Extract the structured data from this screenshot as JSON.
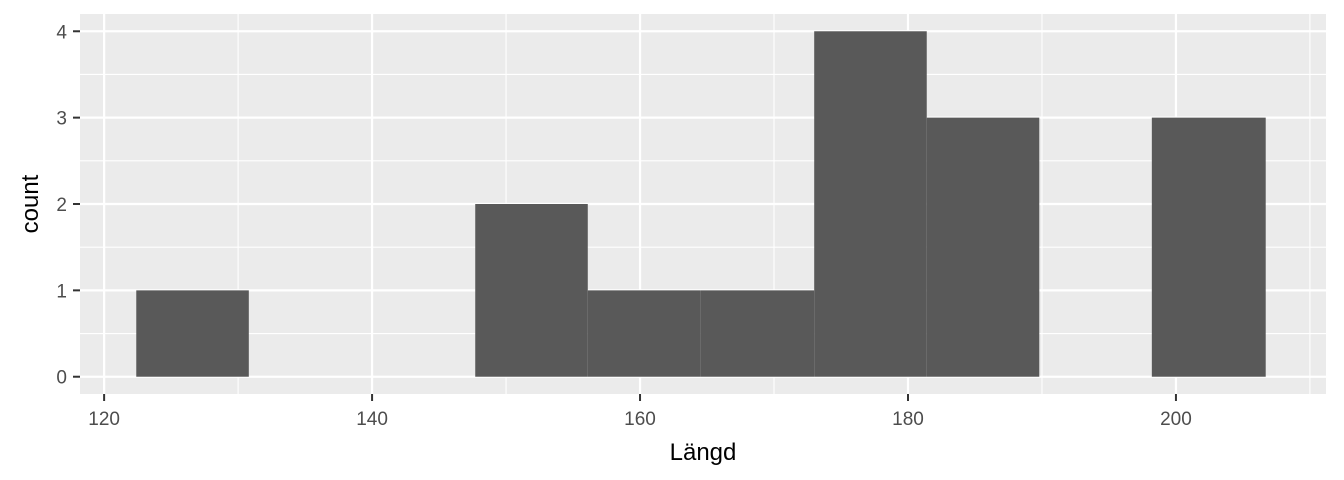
{
  "chart_data": {
    "type": "bar",
    "xlabel": "Längd",
    "ylabel": "count",
    "xlim": [
      118.2,
      211.2
    ],
    "ylim": [
      -0.2,
      4.2
    ],
    "x_ticks": [
      120,
      140,
      160,
      180,
      200
    ],
    "y_ticks": [
      0,
      1,
      2,
      3,
      4
    ],
    "x_tick_labels": [
      "120",
      "140",
      "160",
      "180",
      "200"
    ],
    "y_tick_labels": [
      "0",
      "1",
      "2",
      "3",
      "4"
    ],
    "grid": true,
    "bins": [
      {
        "x0": 122.4,
        "x1": 130.8,
        "count": 1
      },
      {
        "x0": 130.8,
        "x1": 139.3,
        "count": 0
      },
      {
        "x0": 139.3,
        "x1": 147.7,
        "count": 0
      },
      {
        "x0": 147.7,
        "x1": 156.1,
        "count": 2
      },
      {
        "x0": 156.1,
        "x1": 164.5,
        "count": 1
      },
      {
        "x0": 164.5,
        "x1": 173.0,
        "count": 1
      },
      {
        "x0": 173.0,
        "x1": 181.4,
        "count": 4
      },
      {
        "x0": 181.4,
        "x1": 189.8,
        "count": 3
      },
      {
        "x0": 189.8,
        "x1": 198.2,
        "count": 0
      },
      {
        "x0": 198.2,
        "x1": 206.7,
        "count": 3
      }
    ],
    "colors": {
      "panel": "#ebebeb",
      "grid": "#ffffff",
      "bar": "#595959",
      "tick": "#333333"
    }
  }
}
